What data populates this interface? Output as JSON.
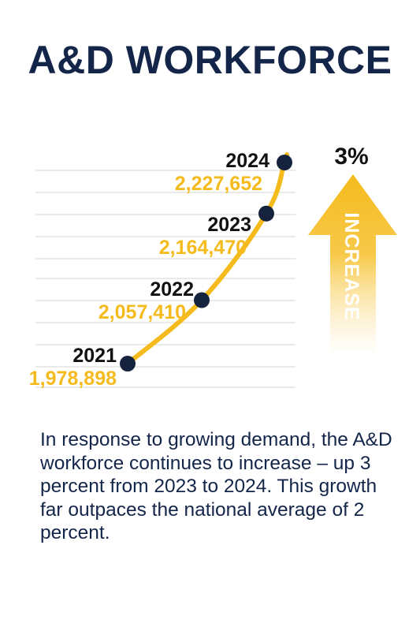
{
  "title": "A&D WORKFORCE",
  "chart_data": {
    "type": "line",
    "x": [
      "2021",
      "2022",
      "2023",
      "2024"
    ],
    "y": [
      1978898,
      2057410,
      2164470,
      2227652
    ],
    "value_labels": [
      "1,978,898",
      "2,057,410",
      "2,164,470",
      "2,227,652"
    ],
    "grid": true,
    "annotation": {
      "percent": "3%",
      "word": "INCREASE"
    }
  },
  "colors": {
    "navy": "#14254a",
    "gold": "#f5bb1c",
    "point": "#16233f"
  },
  "body_text": "In response to growing demand, the A&D workforce continues to increase – up 3 percent from 2023 to 2024. This growth far outpaces the national average of 2 percent."
}
